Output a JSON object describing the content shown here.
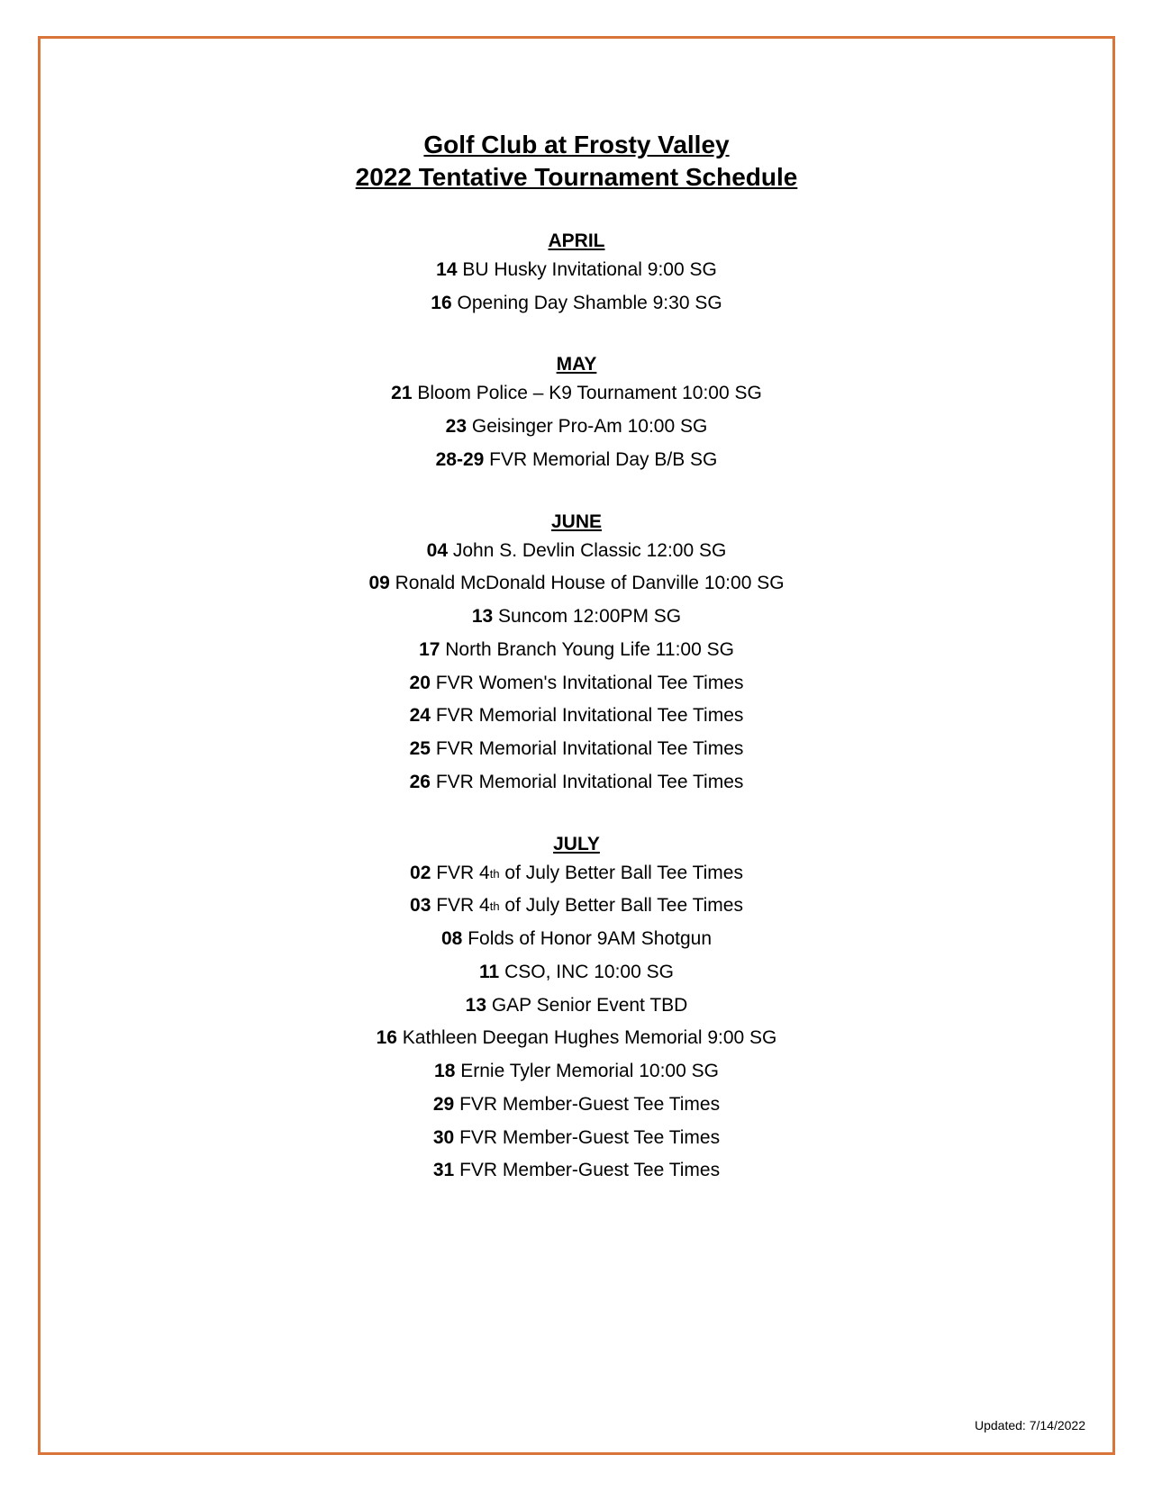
{
  "colors": {
    "border": "#d97538",
    "text": "#000000",
    "background": "#ffffff"
  },
  "typography": {
    "font_family": "Arial",
    "title_fontsize": 28,
    "month_fontsize": 21,
    "event_fontsize": 21,
    "footer_fontsize": 14
  },
  "title": {
    "line1": "Golf Club at Frosty Valley",
    "line2": "2022 Tentative Tournament Schedule"
  },
  "months": [
    {
      "name": "APRIL",
      "events": [
        {
          "date": "14",
          "desc": "BU Husky Invitational 9:00 SG"
        },
        {
          "date": "16",
          "desc": "Opening Day Shamble 9:30 SG"
        }
      ]
    },
    {
      "name": "MAY",
      "events": [
        {
          "date": "21",
          "desc": "Bloom Police – K9 Tournament 10:00 SG"
        },
        {
          "date": "23",
          "desc": "Geisinger Pro-Am 10:00 SG"
        },
        {
          "date": "28-29",
          "desc": "FVR Memorial Day B/B SG"
        }
      ]
    },
    {
      "name": "JUNE",
      "events": [
        {
          "date": "04",
          "desc": "John S. Devlin Classic 12:00 SG"
        },
        {
          "date": "09",
          "desc": "Ronald McDonald House of Danville 10:00 SG"
        },
        {
          "date": "13",
          "desc": "Suncom 12:00PM SG"
        },
        {
          "date": "17",
          "desc": "North Branch Young Life 11:00 SG"
        },
        {
          "date": "20",
          "desc": "FVR Women's Invitational Tee Times"
        },
        {
          "date": "24",
          "desc": "FVR Memorial Invitational Tee Times"
        },
        {
          "date": "25",
          "desc": "FVR Memorial Invitational Tee Times"
        },
        {
          "date": "26",
          "desc": "FVR Memorial Invitational Tee Times"
        }
      ]
    },
    {
      "name": "JULY",
      "events": [
        {
          "date": "02",
          "desc_pre": "FVR 4",
          "ord": "th",
          "desc_post": " of July Better Ball Tee Times"
        },
        {
          "date": "03",
          "desc_pre": "FVR 4",
          "ord": "th",
          "desc_post": " of July Better Ball Tee Times"
        },
        {
          "date": "08",
          "desc": "Folds of Honor 9AM Shotgun"
        },
        {
          "date": "11",
          "desc": "CSO, INC 10:00 SG"
        },
        {
          "date": "13",
          "desc": "GAP Senior Event TBD"
        },
        {
          "date": "16",
          "desc": "Kathleen Deegan Hughes Memorial 9:00 SG"
        },
        {
          "date": "18",
          "desc": "Ernie Tyler Memorial 10:00 SG"
        },
        {
          "date": "29",
          "desc": "FVR Member-Guest Tee Times"
        },
        {
          "date": "30",
          "desc": "FVR Member-Guest Tee Times"
        },
        {
          "date": "31",
          "desc": "FVR Member-Guest Tee Times"
        }
      ]
    }
  ],
  "footer": "Updated:  7/14/2022"
}
